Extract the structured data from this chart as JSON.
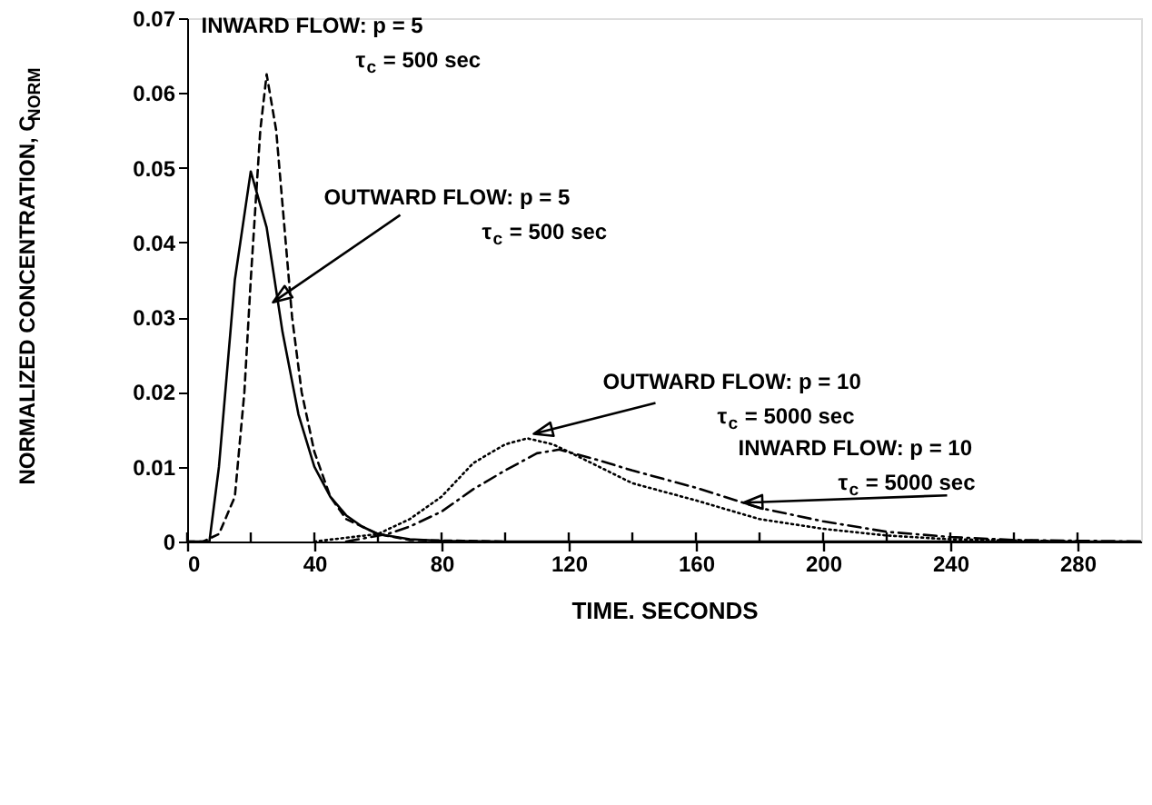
{
  "chart_data": {
    "type": "line",
    "xlabel": "TIME. SECONDS",
    "ylabel": "NORMALIZED CONCENTRATION, C$_{NORM}$",
    "xlim": [
      0,
      300
    ],
    "ylim": [
      0,
      0.07
    ],
    "xticks": [
      0,
      {
        "value": 20,
        "label": null
      },
      40,
      {
        "value": 60,
        "label": null
      },
      80,
      {
        "value": 100,
        "label": null
      },
      120,
      {
        "value": 140,
        "label": null
      },
      160,
      {
        "value": 180,
        "label": null
      },
      200,
      {
        "value": 220,
        "label": null
      },
      240,
      {
        "value": 260,
        "label": null
      },
      280
    ],
    "yticks": [
      0,
      0.01,
      0.02,
      0.03,
      0.04,
      0.05,
      0.06,
      0.07
    ],
    "grid": false,
    "marker": "none",
    "series": [
      {
        "color": "#000000",
        "line_style": "solid",
        "x": [
          0,
          7,
          10,
          15,
          20,
          25,
          30,
          35,
          40,
          45,
          50,
          55,
          60,
          70,
          80,
          100,
          300
        ],
        "values": [
          0,
          0,
          0.01,
          0.035,
          0.0495,
          0.042,
          0.028,
          0.017,
          0.01,
          0.006,
          0.0035,
          0.002,
          0.001,
          0.0003,
          0.0001,
          0,
          0
        ]
      },
      {
        "color": "#000000",
        "line_style": "dashed",
        "x": [
          0,
          5,
          10,
          15,
          18,
          20,
          23,
          25,
          28,
          30,
          33,
          36,
          40,
          45,
          50,
          60,
          70,
          100
        ],
        "values": [
          0,
          0,
          0.001,
          0.006,
          0.02,
          0.035,
          0.055,
          0.0625,
          0.055,
          0.045,
          0.03,
          0.02,
          0.012,
          0.006,
          0.003,
          0.001,
          0.0002,
          0
        ]
      },
      {
        "color": "#000000",
        "line_style": "dotted",
        "x": [
          40,
          60,
          70,
          80,
          90,
          100,
          107,
          115,
          120,
          140,
          160,
          180,
          200,
          220,
          240,
          280
        ],
        "values": [
          0,
          0.001,
          0.003,
          0.006,
          0.0105,
          0.013,
          0.0138,
          0.013,
          0.012,
          0.0078,
          0.0055,
          0.003,
          0.0017,
          0.0008,
          0.0003,
          0
        ]
      },
      {
        "color": "#000000",
        "line_style": "dashdot",
        "x": [
          50,
          63,
          70,
          80,
          90,
          100,
          110,
          117,
          130,
          140,
          160,
          180,
          200,
          220,
          240,
          260,
          280,
          300
        ],
        "values": [
          0,
          0.001,
          0.002,
          0.004,
          0.007,
          0.0095,
          0.0118,
          0.0123,
          0.0108,
          0.0095,
          0.0072,
          0.0045,
          0.0027,
          0.0013,
          0.0006,
          0.0002,
          0.0001,
          0
        ]
      }
    ],
    "annotations": [
      {
        "text": "INWARD FLOW: p = 5\nτ$_{c}$ = 500 sec",
        "x": 25,
        "y": 0.0625
      },
      {
        "text": "OUTWARD FLOW: p = 5\nτ$_{c}$ = 500 sec",
        "x": 27,
        "y": 0.032
      },
      {
        "text": "OUTWARD FLOW:  p = 10\nτ$_{c}$ = 5000 sec",
        "x": 109,
        "y": 0.0144
      },
      {
        "text": "INWARD FLOW:  p = 10\nτ$_{c}$ = 5000 sec",
        "x": 175,
        "y": 0.0052
      }
    ]
  }
}
